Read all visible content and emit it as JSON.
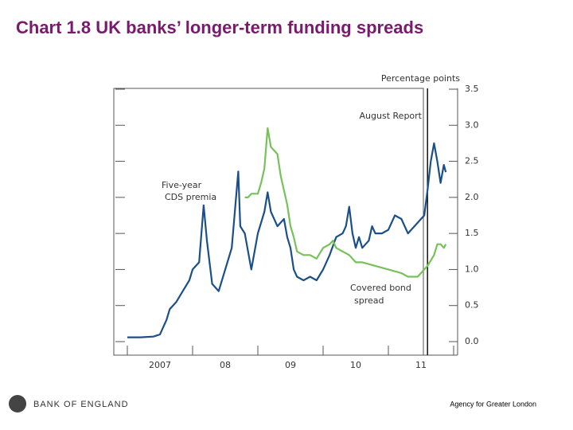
{
  "slide_title": "Chart 1.8 UK banks’ longer-term funding spreads",
  "logo_text": "BANK OF ENGLAND",
  "footer": "Agency for Greater London",
  "chart_data": {
    "type": "line",
    "y_axis_label": "Percentage points",
    "annotations": [
      "August Report",
      "Five-year",
      "CDS premia",
      "Covered bond",
      "spread"
    ],
    "report_line_x": 2011.6,
    "xlim": [
      2007,
      2012
    ],
    "x_boundaries": [
      2007,
      2008,
      2009,
      2010,
      2011,
      2012
    ],
    "xticks": [
      {
        "value": 2007.5,
        "label": "2007"
      },
      {
        "value": 2008.5,
        "label": "08"
      },
      {
        "value": 2009.5,
        "label": "09"
      },
      {
        "value": 2010.5,
        "label": "10"
      },
      {
        "value": 2011.5,
        "label": "11"
      }
    ],
    "ylim": [
      0,
      3.5
    ],
    "yticks": [
      {
        "value": 0,
        "label": "0.0"
      },
      0.5,
      {
        "value": 1,
        "label": "1.0"
      },
      1.5,
      {
        "value": 2,
        "label": "2.0"
      },
      2.5,
      {
        "value": 3,
        "label": "3.0"
      },
      3.5
    ],
    "series": [
      {
        "name": "Five-year CDS premia",
        "color": "#1b4f8a",
        "x": [
          2007.0,
          2007.2,
          2007.4,
          2007.5,
          2007.6,
          2007.65,
          2007.75,
          2007.85,
          2007.95,
          2008.0,
          2008.1,
          2008.17,
          2008.22,
          2008.3,
          2008.4,
          2008.5,
          2008.6,
          2008.7,
          2008.73,
          2008.8,
          2008.9,
          2009.0,
          2009.1,
          2009.15,
          2009.2,
          2009.3,
          2009.4,
          2009.45,
          2009.5,
          2009.55,
          2009.6,
          2009.7,
          2009.8,
          2009.9,
          2010.0,
          2010.1,
          2010.2,
          2010.3,
          2010.35,
          2010.4,
          2010.45,
          2010.5,
          2010.55,
          2010.6,
          2010.7,
          2010.75,
          2010.8,
          2010.9,
          2011.0,
          2011.1,
          2011.2,
          2011.3,
          2011.4,
          2011.5,
          2011.55,
          2011.6,
          2011.65,
          2011.7,
          2011.75,
          2011.8,
          2011.85,
          2011.88
        ],
        "values": [
          0.06,
          0.06,
          0.07,
          0.1,
          0.3,
          0.45,
          0.55,
          0.7,
          0.85,
          1.0,
          1.1,
          1.89,
          1.4,
          0.8,
          0.7,
          1.0,
          1.3,
          2.36,
          1.6,
          1.5,
          1.0,
          1.5,
          1.8,
          2.07,
          1.8,
          1.6,
          1.7,
          1.45,
          1.3,
          1.0,
          0.9,
          0.85,
          0.9,
          0.85,
          1.0,
          1.2,
          1.45,
          1.5,
          1.6,
          1.87,
          1.5,
          1.3,
          1.45,
          1.3,
          1.4,
          1.6,
          1.5,
          1.5,
          1.55,
          1.75,
          1.7,
          1.5,
          1.6,
          1.7,
          1.75,
          2.1,
          2.5,
          2.75,
          2.5,
          2.2,
          2.45,
          2.35
        ]
      },
      {
        "name": "Covered bond spread",
        "color": "#77c15a",
        "x": [
          2008.8,
          2008.85,
          2008.9,
          2009.0,
          2009.05,
          2009.1,
          2009.15,
          2009.2,
          2009.25,
          2009.3,
          2009.35,
          2009.45,
          2009.5,
          2009.55,
          2009.6,
          2009.7,
          2009.8,
          2009.9,
          2010.0,
          2010.1,
          2010.15,
          2010.2,
          2010.3,
          2010.4,
          2010.5,
          2010.6,
          2010.8,
          2011.0,
          2011.2,
          2011.3,
          2011.45,
          2011.55,
          2011.6,
          2011.7,
          2011.75,
          2011.8,
          2011.85,
          2011.88
        ],
        "values": [
          2.0,
          2.0,
          2.05,
          2.05,
          2.2,
          2.4,
          2.96,
          2.7,
          2.65,
          2.6,
          2.3,
          1.9,
          1.6,
          1.45,
          1.25,
          1.2,
          1.2,
          1.15,
          1.3,
          1.35,
          1.4,
          1.3,
          1.25,
          1.2,
          1.1,
          1.1,
          1.05,
          1.0,
          0.95,
          0.9,
          0.9,
          1.0,
          1.05,
          1.2,
          1.35,
          1.35,
          1.3,
          1.35
        ]
      }
    ]
  }
}
